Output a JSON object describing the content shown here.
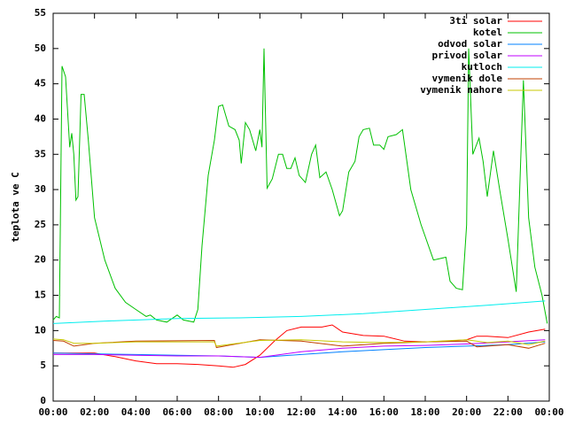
{
  "chart_data": {
    "type": "line",
    "y_label": "teplota ve C",
    "xlim": [
      0,
      24
    ],
    "xticks": [
      {
        "value": 0,
        "label": "00:00"
      },
      {
        "value": 2,
        "label": "02:00"
      },
      {
        "value": 4,
        "label": "04:00"
      },
      {
        "value": 6,
        "label": "06:00"
      },
      {
        "value": 8,
        "label": "08:00"
      },
      {
        "value": 10,
        "label": "10:00"
      },
      {
        "value": 12,
        "label": "12:00"
      },
      {
        "value": 14,
        "label": "14:00"
      },
      {
        "value": 16,
        "label": "16:00"
      },
      {
        "value": 18,
        "label": "18:00"
      },
      {
        "value": 20,
        "label": "20:00"
      },
      {
        "value": 22,
        "label": "22:00"
      },
      {
        "value": 24,
        "label": "00:00"
      }
    ],
    "ylim": [
      0,
      55
    ],
    "yticks": [
      0,
      5,
      10,
      15,
      20,
      25,
      30,
      35,
      40,
      45,
      50,
      55
    ],
    "legend": "top-right",
    "series": [
      {
        "name": "3ti solar",
        "color": "#ff0000",
        "x": [
          0,
          1,
          2,
          3,
          4,
          5,
          6,
          7,
          8,
          8.7,
          9.3,
          10,
          10.7,
          11.3,
          12,
          13,
          13.5,
          14,
          15,
          16,
          17,
          18,
          19,
          20,
          20.5,
          21,
          22,
          23,
          23.8
        ],
        "values": [
          6.8,
          6.8,
          6.8,
          6.3,
          5.7,
          5.3,
          5.3,
          5.2,
          5,
          4.8,
          5.2,
          6.5,
          8.5,
          10,
          10.5,
          10.5,
          10.8,
          9.8,
          9.3,
          9.2,
          8.5,
          8.4,
          8.5,
          8.7,
          9.2,
          9.2,
          9,
          9.8,
          10.2
        ]
      },
      {
        "name": "kotel",
        "color": "#00c000",
        "x": [
          0,
          0.15,
          0.3,
          0.43,
          0.6,
          0.8,
          0.9,
          1.0,
          1.1,
          1.2,
          1.35,
          1.5,
          1.7,
          2,
          2.5,
          3,
          3.5,
          4,
          4.5,
          4.7,
          5,
          5.5,
          6,
          6.3,
          6.8,
          7.0,
          7.2,
          7.5,
          7.8,
          8.0,
          8.2,
          8.5,
          8.8,
          9.0,
          9.1,
          9.3,
          9.5,
          9.8,
          10.0,
          10.1,
          10.2,
          10.35,
          10.6,
          10.9,
          11.1,
          11.3,
          11.5,
          11.7,
          11.9,
          12.2,
          12.5,
          12.7,
          12.9,
          13.2,
          13.5,
          13.85,
          14.0,
          14.3,
          14.6,
          14.8,
          15.0,
          15.3,
          15.5,
          15.8,
          16.0,
          16.2,
          16.6,
          16.9,
          17.3,
          17.8,
          18.4,
          18.7,
          19.0,
          19.2,
          19.5,
          19.8,
          20.0,
          20.1,
          20.3,
          20.6,
          20.8,
          21.0,
          21.3,
          21.6,
          22.0,
          22.4,
          22.75,
          23.0,
          23.3,
          23.65,
          23.9
        ],
        "values": [
          11.5,
          12,
          11.8,
          47.5,
          46,
          36,
          38,
          35,
          28.5,
          29,
          43.5,
          43.5,
          37,
          26,
          20,
          16,
          14,
          13,
          12,
          12.2,
          11.5,
          11.2,
          12.2,
          11.5,
          11.2,
          13,
          22,
          32,
          37,
          41.8,
          42,
          39,
          38.5,
          37,
          33.7,
          39.5,
          38.5,
          35.5,
          38.5,
          36,
          50,
          30.2,
          31.5,
          35,
          35,
          33,
          33,
          34.5,
          32,
          31,
          35,
          36.3,
          31.7,
          32.5,
          30,
          26.3,
          27,
          32.5,
          34,
          37.5,
          38.5,
          38.7,
          36.3,
          36.3,
          35.7,
          37.5,
          37.8,
          38.5,
          30,
          25,
          20,
          20.2,
          20.4,
          17,
          16,
          15.8,
          25,
          50,
          35,
          37.3,
          34,
          29,
          35.5,
          30,
          23,
          15.5,
          45.5,
          26,
          19,
          15,
          11
        ]
      },
      {
        "name": "odvod solar",
        "color": "#0080ff",
        "x": [
          0,
          2,
          4,
          6,
          8,
          10,
          12,
          14,
          16,
          18,
          20,
          22,
          23.8
        ],
        "values": [
          6.8,
          6.7,
          6.6,
          6.5,
          6.4,
          6.2,
          6.6,
          7,
          7.3,
          7.6,
          7.8,
          8,
          8.4
        ]
      },
      {
        "name": "privod solar",
        "color": "#c000ff",
        "x": [
          0,
          2,
          4,
          6,
          8,
          10,
          12,
          14,
          16,
          18,
          20,
          22,
          23.8
        ],
        "values": [
          6.6,
          6.6,
          6.5,
          6.4,
          6.4,
          6.2,
          7,
          7.5,
          7.8,
          7.9,
          8.1,
          8.4,
          8.7
        ]
      },
      {
        "name": "kutloch",
        "color": "#00eeee",
        "x": [
          0,
          3,
          6,
          9,
          12,
          15,
          18,
          21,
          23.8
        ],
        "values": [
          11,
          11.4,
          11.7,
          11.8,
          12,
          12.4,
          13,
          13.6,
          14.2
        ]
      },
      {
        "name": "vymenik dole",
        "color": "#c04000",
        "x": [
          0,
          0.5,
          1,
          2,
          4,
          7.8,
          7.9,
          10,
          12,
          14,
          16,
          18,
          20,
          20.5,
          22,
          23,
          23.8
        ],
        "values": [
          8.6,
          8.5,
          7.8,
          8.2,
          8.5,
          8.6,
          7.6,
          8.7,
          8.5,
          7.8,
          8.2,
          8.4,
          8.5,
          7.7,
          8,
          7.5,
          8.2
        ]
      },
      {
        "name": "vymenik nahore",
        "color": "#c8c800",
        "x": [
          0,
          0.5,
          1,
          2,
          4,
          7.8,
          7.9,
          10,
          12,
          14,
          16,
          18,
          20,
          21,
          22,
          23,
          23.8
        ],
        "values": [
          8.8,
          8.7,
          8.2,
          8.2,
          8.4,
          8.4,
          7.8,
          8.6,
          8.7,
          8.4,
          8.3,
          8.4,
          8.7,
          8.3,
          8.5,
          8,
          8.5
        ]
      }
    ]
  }
}
